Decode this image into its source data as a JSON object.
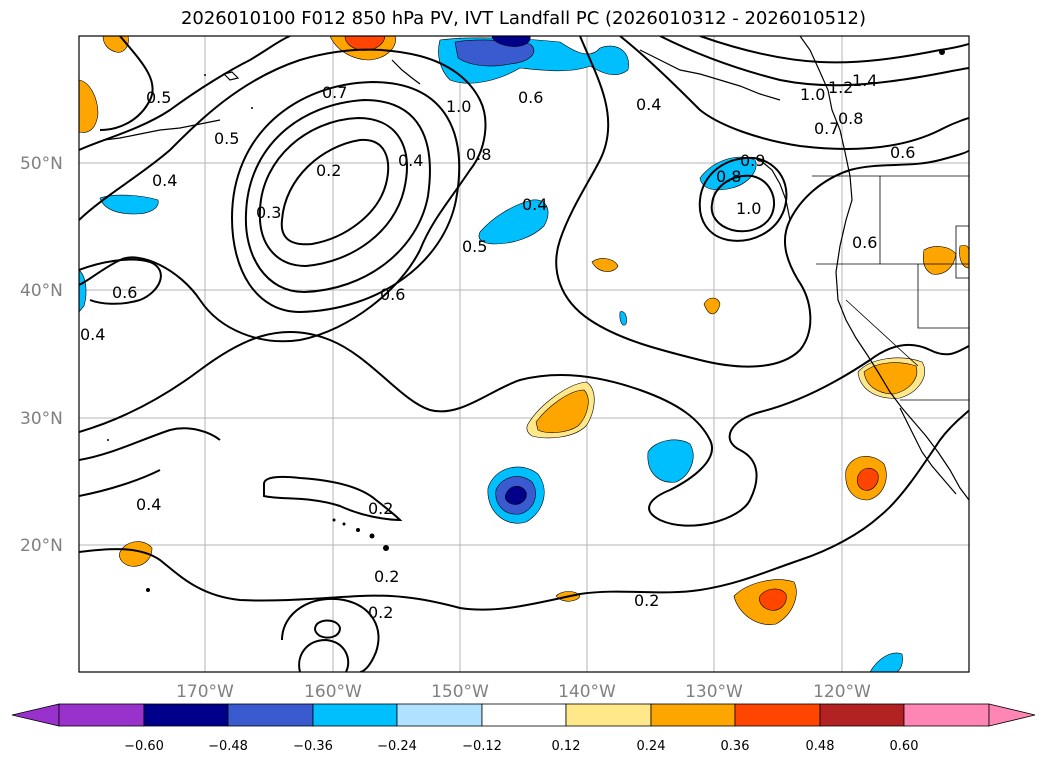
{
  "title": "2026010100 F012 850 hPa PV, IVT Landfall PC (2026010312 - 2026010512)",
  "lat_ticks": [
    "50°N",
    "40°N",
    "30°N",
    "20°N"
  ],
  "lon_ticks": [
    "170°W",
    "160°W",
    "150°W",
    "140°W",
    "130°W",
    "120°W"
  ],
  "colorbar": {
    "ticks": [
      "−0.60",
      "−0.48",
      "−0.36",
      "−0.24",
      "−0.12",
      "0.12",
      "0.24",
      "0.36",
      "0.48",
      "0.60"
    ],
    "colors": [
      "#9932cc",
      "#00008b",
      "#3a5bd0",
      "#00bfff",
      "#b0e2ff",
      "#ffffff",
      "#ffe88a",
      "#ffa500",
      "#ff4500",
      "#b22222",
      "#ff86b4"
    ]
  },
  "contour_labels": [
    "0.5",
    "0.7",
    "1.0",
    "0.6",
    "0.4",
    "1.0",
    "1.2",
    "1.4",
    "0.7",
    "0.8",
    "0.6",
    "0.5",
    "0.2",
    "0.4",
    "0.3",
    "0.4",
    "0.8",
    "0.9",
    "0.8",
    "1.0",
    "0.6",
    "0.4",
    "0.5",
    "0.6",
    "0.6",
    "0.4",
    "0.4",
    "0.2",
    "0.2",
    "0.2",
    "0.2"
  ]
}
